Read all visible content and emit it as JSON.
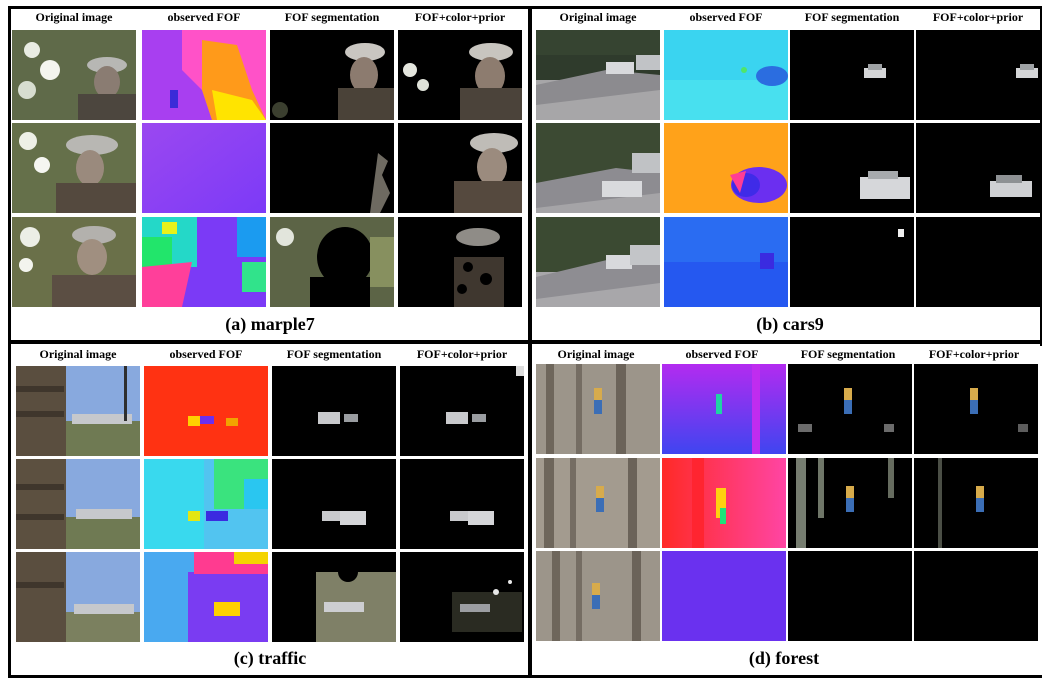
{
  "columns": [
    "Original image",
    "observed FOF",
    "FOF segmentation",
    "FOF+color+prior"
  ],
  "panels": [
    {
      "id": "marple7",
      "caption": "(a) marple7"
    },
    {
      "id": "cars9",
      "caption": "(b) cars9"
    },
    {
      "id": "traffic",
      "caption": "(c) traffic"
    },
    {
      "id": "forest",
      "caption": "(d) forest"
    }
  ]
}
